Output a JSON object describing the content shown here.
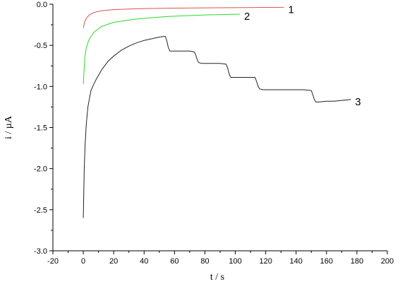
{
  "chart_data": {
    "type": "line",
    "title": "",
    "xlabel": "t / s",
    "ylabel": "i / µA",
    "xlim": [
      -20,
      200
    ],
    "ylim": [
      -3.0,
      0.0
    ],
    "xticks": [
      "-20",
      "0",
      "20",
      "40",
      "60",
      "80",
      "100",
      "120",
      "140",
      "160",
      "180",
      "200"
    ],
    "yticks": [
      "0.0",
      "-0.5",
      "-1.0",
      "-1.5",
      "-2.0",
      "-2.5",
      "-3.0"
    ],
    "grid": false,
    "legend": "none",
    "series": [
      {
        "name": "1",
        "color": "#e05050",
        "x": [
          0,
          1,
          2,
          4,
          7,
          12,
          20,
          35,
          55,
          80,
          105,
          132
        ],
        "y": [
          -0.29,
          -0.21,
          -0.17,
          -0.13,
          -0.1,
          -0.08,
          -0.065,
          -0.055,
          -0.048,
          -0.044,
          -0.041,
          -0.038
        ]
      },
      {
        "name": "2",
        "color": "#22dd22",
        "x": [
          0,
          1,
          2,
          4,
          7,
          12,
          20,
          35,
          55,
          80,
          103
        ],
        "y": [
          -0.97,
          -0.65,
          -0.52,
          -0.42,
          -0.34,
          -0.27,
          -0.22,
          -0.18,
          -0.15,
          -0.13,
          -0.12
        ]
      },
      {
        "name": "3",
        "color": "#222222",
        "x": [
          0,
          0.6,
          1.2,
          2,
          3,
          5,
          8,
          12,
          16,
          20,
          25,
          30,
          35,
          40,
          45,
          50,
          54,
          55,
          56,
          57,
          60,
          65,
          70,
          73,
          74,
          75,
          76,
          78,
          85,
          90,
          94,
          95,
          96,
          97,
          100,
          105,
          110,
          113,
          114,
          115,
          116,
          118,
          125,
          130,
          135,
          140,
          145,
          150,
          151,
          152,
          153,
          155,
          160,
          165,
          170,
          176
        ],
        "y": [
          -2.6,
          -2.0,
          -1.7,
          -1.45,
          -1.25,
          -1.05,
          -0.93,
          -0.8,
          -0.7,
          -0.63,
          -0.56,
          -0.51,
          -0.47,
          -0.44,
          -0.42,
          -0.4,
          -0.39,
          -0.45,
          -0.53,
          -0.57,
          -0.57,
          -0.57,
          -0.57,
          -0.58,
          -0.62,
          -0.68,
          -0.71,
          -0.72,
          -0.72,
          -0.72,
          -0.73,
          -0.78,
          -0.85,
          -0.89,
          -0.89,
          -0.89,
          -0.89,
          -0.89,
          -0.94,
          -1.0,
          -1.03,
          -1.04,
          -1.04,
          -1.04,
          -1.04,
          -1.04,
          -1.04,
          -1.05,
          -1.1,
          -1.16,
          -1.19,
          -1.19,
          -1.18,
          -1.18,
          -1.17,
          -1.16
        ]
      }
    ],
    "series_labels": [
      "1",
      "2",
      "3"
    ]
  }
}
